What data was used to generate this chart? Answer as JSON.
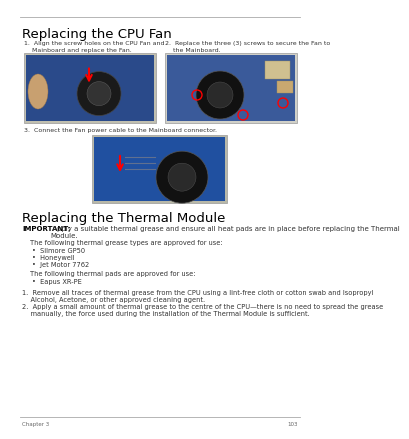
{
  "bg_color": "#ffffff",
  "title1": "Replacing the CPU Fan",
  "title2": "Replacing the Thermal Module",
  "step1_text": "1.  Align the screw holes on the CPU Fan and\n    Mainboard and replace the Fan.",
  "step2_text": "2.  Replace the three (3) screws to secure the Fan to\n    the Mainboard.",
  "step3_text": "3.  Connect the Fan power cable to the Mainboard connector.",
  "important_label": "IMPORTANT:",
  "important_body": " Apply a suitable thermal grease and ensure all heat pads are in place before replacing the Thermal\nModule.",
  "thermal_intro": "The following thermal grease types are approved for use:",
  "thermal_greases": [
    "Silmore GP50",
    "Honeywell",
    "Jet Motor 7762"
  ],
  "pads_intro": "The following thermal pads are approved for use:",
  "thermal_pads": [
    "Eapus XR-PE"
  ],
  "thermal_step1": "1.  Remove all traces of thermal grease from the CPU using a lint-free cloth or cotton swab and Isopropyl\n    Alcohol, Acetone, or other approved cleaning agent.",
  "thermal_step2": "2.  Apply a small amount of thermal grease to the centre of the CPU—there is no need to spread the grease\n    manually, the force used during the installation of the Thermal Module is sufficient.",
  "footer_left": "Chapter 3",
  "footer_page": "103",
  "text_color": "#333333",
  "separator_color": "#aaaaaa",
  "img1_pcb": "#2a4a8a",
  "img2_pcb": "#3a5a9a",
  "img3_pcb": "#2050a0",
  "img_border": "#999999"
}
